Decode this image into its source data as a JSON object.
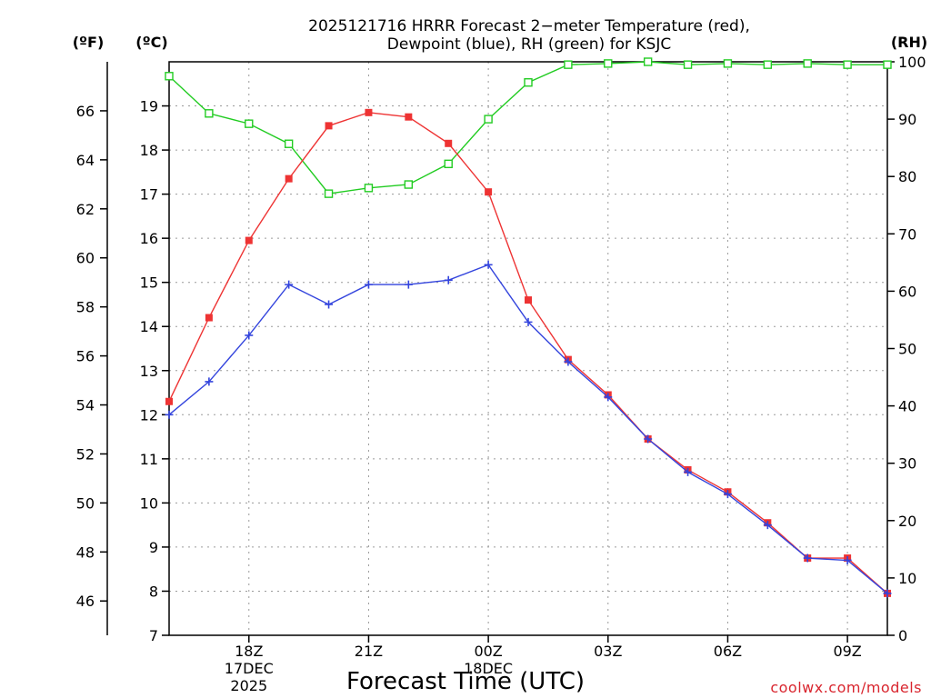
{
  "chart_data": {
    "type": "line",
    "title_line1": "2025121716 HRRR Forecast 2−meter Temperature (red),",
    "title_line2": "Dewpoint (blue), RH (green) for KSJC",
    "xlabel": "Forecast Time (UTC)",
    "credit": "coolwx.com/models",
    "units": {
      "left_outer": "(ºF)",
      "left_inner": "(ºC)",
      "right": "(RH)"
    },
    "x_hours": [
      16,
      17,
      18,
      19,
      20,
      21,
      22,
      23,
      24,
      25,
      26,
      27,
      28,
      29,
      30,
      31,
      32,
      33,
      34
    ],
    "xlim": [
      16,
      34
    ],
    "x_ticks": [
      {
        "hour": 18,
        "label": "18Z",
        "sub1": "17DEC",
        "sub2": "2025"
      },
      {
        "hour": 21,
        "label": "21Z",
        "sub1": "",
        "sub2": ""
      },
      {
        "hour": 24,
        "label": "00Z",
        "sub1": "18DEC",
        "sub2": ""
      },
      {
        "hour": 27,
        "label": "03Z",
        "sub1": "",
        "sub2": ""
      },
      {
        "hour": 30,
        "label": "06Z",
        "sub1": "",
        "sub2": ""
      },
      {
        "hour": 33,
        "label": "09Z",
        "sub1": "",
        "sub2": ""
      }
    ],
    "celsius_axis": {
      "min": 7,
      "max": 20,
      "ticks": [
        "7",
        "8",
        "9",
        "10",
        "11",
        "12",
        "13",
        "14",
        "15",
        "16",
        "17",
        "18",
        "19"
      ]
    },
    "fahrenheit_axis": {
      "ticks": [
        "46",
        "48",
        "50",
        "52",
        "54",
        "56",
        "58",
        "60",
        "62",
        "64",
        "66"
      ]
    },
    "rh_axis": {
      "min": 0,
      "max": 100,
      "ticks": [
        "0",
        "10",
        "20",
        "30",
        "40",
        "50",
        "60",
        "70",
        "80",
        "90",
        "100"
      ]
    },
    "series": [
      {
        "name": "Temperature",
        "unit": "C",
        "color": "#ee3333",
        "marker": "filled-square",
        "values": [
          12.3,
          14.2,
          15.95,
          17.35,
          18.55,
          18.85,
          18.75,
          18.15,
          17.05,
          14.6,
          13.25,
          12.45,
          11.45,
          10.75,
          10.25,
          9.55,
          8.75,
          8.75,
          7.95
        ]
      },
      {
        "name": "Dewpoint",
        "unit": "C",
        "color": "#3344dd",
        "marker": "plus",
        "values": [
          12.0,
          12.75,
          13.8,
          14.95,
          14.5,
          14.95,
          14.95,
          15.05,
          15.4,
          14.1,
          13.2,
          12.4,
          11.45,
          10.7,
          10.2,
          9.5,
          8.75,
          8.7,
          7.95
        ]
      },
      {
        "name": "RH",
        "unit": "%",
        "color": "#22cc22",
        "marker": "open-square",
        "values": [
          97.5,
          91,
          89.2,
          85.7,
          77,
          78,
          78.6,
          82.2,
          90,
          96.4,
          99.5,
          99.7,
          100,
          99.5,
          99.7,
          99.5,
          99.7,
          99.5,
          99.5
        ]
      }
    ]
  }
}
